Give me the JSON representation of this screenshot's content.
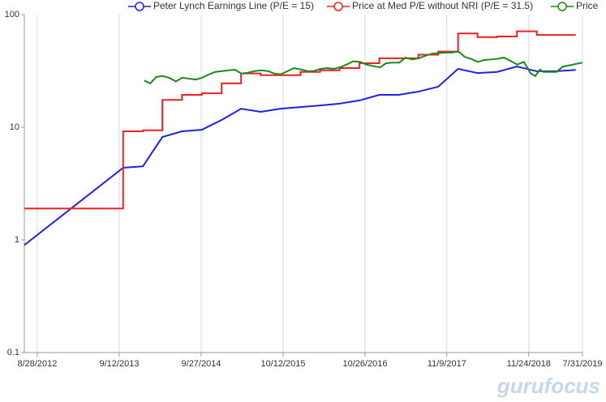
{
  "chart_data": {
    "type": "line",
    "log_y": true,
    "grid_x": true,
    "legend": "top-right",
    "watermark": "gurufocus",
    "ylim": [
      0.1,
      100
    ],
    "yticks": [
      0.1,
      1,
      10,
      100
    ],
    "xlim": [
      "6/29/2012",
      "7/31/2019"
    ],
    "xticks": [
      "8/28/2012",
      "9/12/2013",
      "9/27/2014",
      "10/12/2015",
      "10/26/2016",
      "11/9/2017",
      "11/24/2018",
      "7/31/2019"
    ],
    "series": [
      {
        "name": "Peter Lynch Earnings Line (P/E = 15)",
        "color": "#2020e0",
        "x": [
          "6/29/2012",
          "9/30/2013",
          "12/31/2013",
          "3/31/2014",
          "6/30/2014",
          "9/30/2014",
          "12/31/2014",
          "3/31/2015",
          "6/30/2015",
          "9/30/2015",
          "12/31/2015",
          "3/31/2016",
          "6/30/2016",
          "9/30/2016",
          "12/31/2016",
          "3/31/2017",
          "6/30/2017",
          "9/30/2017",
          "12/31/2017",
          "3/31/2018",
          "6/30/2018",
          "9/30/2018",
          "12/31/2018",
          "3/31/2019",
          "6/30/2019"
        ],
        "values": [
          0.9,
          4.37,
          4.5,
          8.2,
          9.2,
          9.5,
          11.6,
          14.6,
          13.7,
          14.6,
          15.1,
          15.6,
          16.2,
          17.3,
          19.4,
          19.4,
          20.7,
          22.9,
          33,
          30.3,
          31,
          34.6,
          31.4,
          31.4,
          32.3
        ]
      },
      {
        "name": "Price at Med P/E without NRI (P/E = 31.5)",
        "color": "#f02020",
        "step": true,
        "x": [
          "6/29/2012",
          "9/30/2013",
          "12/31/2013",
          "3/31/2014",
          "6/30/2014",
          "9/30/2014",
          "12/31/2014",
          "3/31/2015",
          "6/30/2015",
          "9/30/2015",
          "12/31/2015",
          "3/31/2016",
          "6/30/2016",
          "9/30/2016",
          "12/31/2016",
          "3/31/2017",
          "6/30/2017",
          "9/30/2017",
          "12/31/2017",
          "3/31/2018",
          "6/30/2018",
          "9/30/2018",
          "12/31/2018",
          "3/31/2019",
          "6/30/2019"
        ],
        "values": [
          1.9,
          9.2,
          9.4,
          17.5,
          19.4,
          20,
          24.5,
          30,
          29,
          29,
          31,
          32,
          33.5,
          37,
          41,
          41,
          44,
          47,
          68,
          63,
          64,
          71,
          66,
          66,
          66
        ]
      },
      {
        "name": "Price",
        "color": "#1a8a1a",
        "x": [
          "1/6/2014",
          "2/3/2014",
          "3/3/2014",
          "4/1/2014",
          "5/1/2014",
          "6/2/2014",
          "7/1/2014",
          "8/1/2014",
          "9/2/2014",
          "10/1/2014",
          "11/3/2014",
          "12/1/2014",
          "2/2/2015",
          "3/2/2015",
          "4/1/2015",
          "5/1/2015",
          "6/1/2015",
          "7/1/2015",
          "8/3/2015",
          "9/1/2015",
          "10/1/2015",
          "11/2/2015",
          "12/1/2015",
          "1/4/2016",
          "2/1/2016",
          "3/1/2016",
          "4/1/2016",
          "5/2/2016",
          "6/1/2016",
          "7/1/2016",
          "8/1/2016",
          "9/1/2016",
          "10/3/2016",
          "11/1/2016",
          "12/1/2016",
          "1/3/2017",
          "2/1/2017",
          "3/1/2017",
          "4/3/2017",
          "5/1/2017",
          "6/1/2017",
          "7/3/2017",
          "8/1/2017",
          "9/1/2017",
          "10/2/2017",
          "11/1/2017",
          "12/1/2017",
          "1/2/2018",
          "2/1/2018",
          "3/1/2018",
          "4/2/2018",
          "5/1/2018",
          "6/1/2018",
          "7/2/2018",
          "8/1/2018",
          "9/4/2018",
          "10/1/2018",
          "11/1/2018",
          "12/3/2018",
          "12/24/2018",
          "1/15/2019",
          "2/1/2019",
          "3/1/2019",
          "4/1/2019",
          "5/1/2019",
          "6/3/2019",
          "7/31/2019"
        ],
        "values": [
          26,
          24.5,
          28,
          28.5,
          27.5,
          25.5,
          27.5,
          27,
          26.5,
          27.5,
          29.5,
          31,
          32,
          32.5,
          30,
          30.5,
          31.5,
          32,
          31.5,
          30,
          29.5,
          31.5,
          33.5,
          32.5,
          31.5,
          31.5,
          33,
          33.5,
          33,
          34,
          36,
          38.5,
          38,
          36,
          35,
          34,
          37,
          37.5,
          37.5,
          41.5,
          40,
          41,
          43,
          45,
          45.5,
          46,
          46,
          47,
          42,
          40.5,
          38,
          39.5,
          40,
          40.5,
          41.5,
          38.5,
          36,
          38,
          30,
          28.5,
          32.5,
          31,
          31,
          31,
          34.5,
          35.5,
          37.5
        ]
      }
    ]
  }
}
